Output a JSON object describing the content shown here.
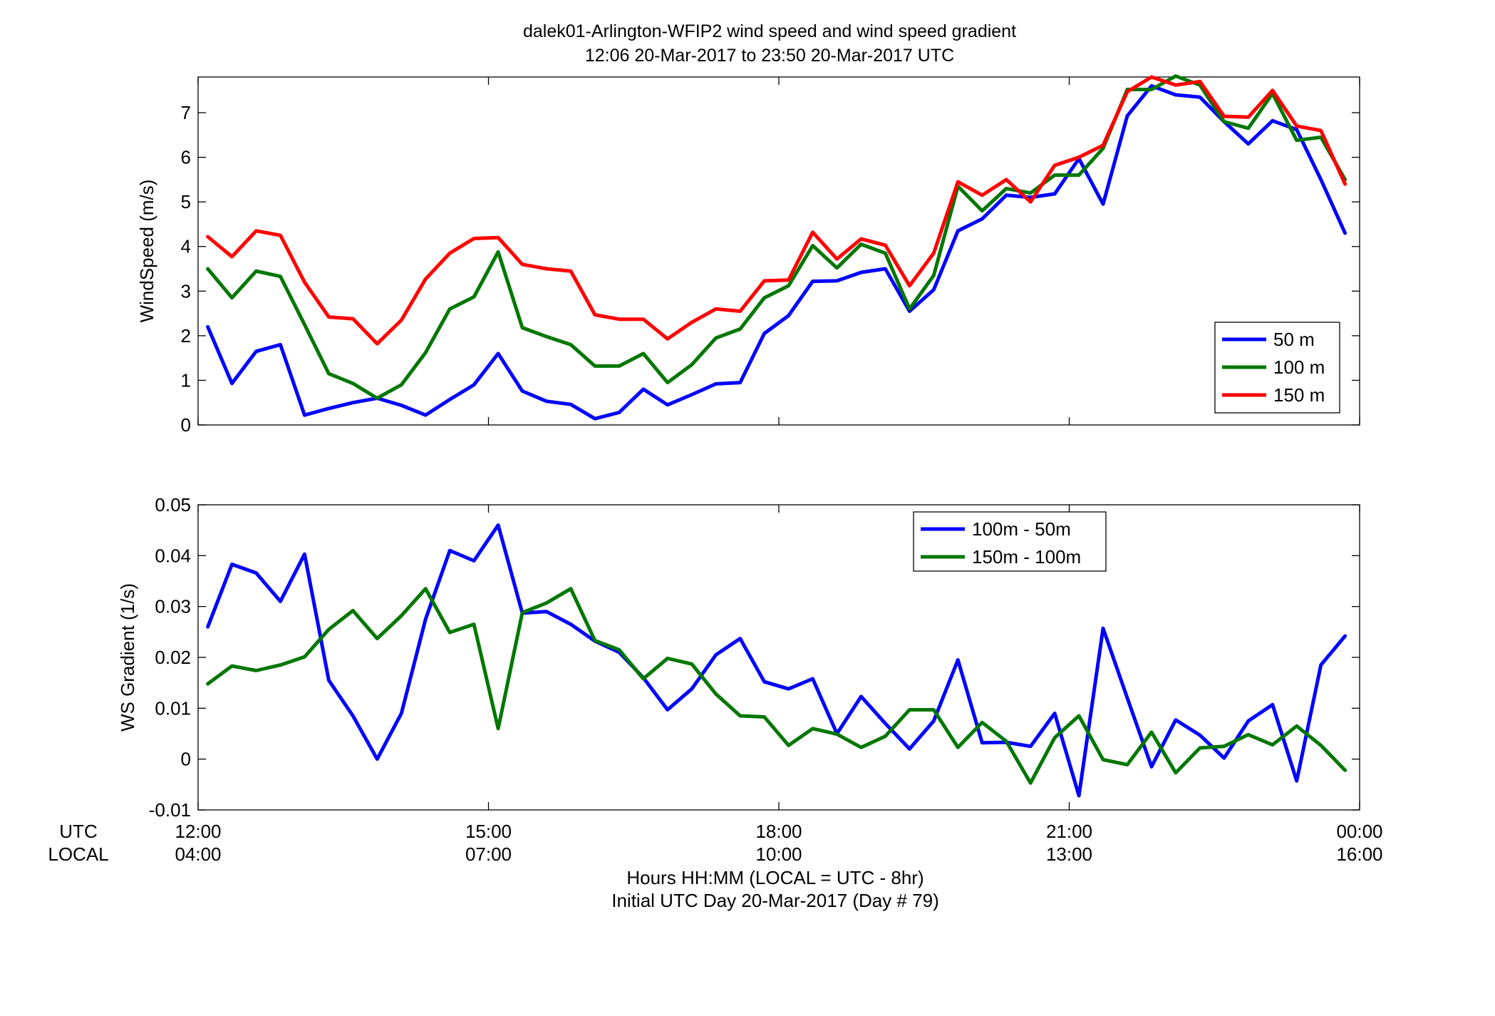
{
  "figure": {
    "title_line1": "dalek01-Arlington-WFIP2  wind speed and wind speed gradient",
    "title_line2": "12:06 20-Mar-2017 to 23:50 20-Mar-2017  UTC",
    "row_label_utc": "UTC",
    "row_label_local": "LOCAL",
    "xlabel_line1": "Hours HH:MM  (LOCAL = UTC - 8hr)",
    "xlabel_line2": "Initial UTC Day 20-Mar-2017 (Day # 79)",
    "utc_ticks": [
      "12:00",
      "15:00",
      "18:00",
      "21:00",
      "00:00"
    ],
    "local_ticks": [
      "04:00",
      "07:00",
      "10:00",
      "13:00",
      "16:00"
    ]
  },
  "chart_data": [
    {
      "type": "line",
      "ylabel": "WindSpeed (m/s)",
      "xlim": [
        0,
        12
      ],
      "x_unit": "hours after 12:00 UTC",
      "ylim": [
        0,
        7.8
      ],
      "yticks": [
        0,
        1,
        2,
        3,
        4,
        5,
        6,
        7
      ],
      "legend_position": "bottom-right",
      "x": [
        0.1,
        0.35,
        0.6,
        0.85,
        1.1,
        1.35,
        1.6,
        1.85,
        2.1,
        2.35,
        2.6,
        2.85,
        3.1,
        3.35,
        3.6,
        3.85,
        4.1,
        4.35,
        4.6,
        4.85,
        5.1,
        5.35,
        5.6,
        5.85,
        6.1,
        6.35,
        6.6,
        6.85,
        7.1,
        7.35,
        7.6,
        7.85,
        8.1,
        8.35,
        8.6,
        8.85,
        9.1,
        9.35,
        9.6,
        9.85,
        10.1,
        10.35,
        10.6,
        10.85,
        11.1,
        11.35,
        11.6,
        11.85
      ],
      "series": [
        {
          "name": "50 m",
          "color": "#0000ff",
          "values": [
            2.2,
            0.93,
            1.65,
            1.8,
            0.22,
            0.37,
            0.5,
            0.6,
            0.44,
            0.22,
            0.57,
            0.9,
            1.6,
            0.76,
            0.53,
            0.46,
            0.14,
            0.28,
            0.8,
            0.45,
            0.68,
            0.92,
            0.95,
            2.05,
            2.45,
            3.22,
            3.23,
            3.42,
            3.5,
            2.55,
            3.03,
            4.35,
            4.62,
            5.15,
            5.1,
            5.18,
            5.97,
            4.95,
            6.93,
            7.6,
            7.4,
            7.35,
            6.8,
            6.3,
            6.82,
            6.62,
            5.5,
            4.3
          ]
        },
        {
          "name": "100 m",
          "color": "#007700",
          "values": [
            3.5,
            2.85,
            3.45,
            3.33,
            2.25,
            1.15,
            0.93,
            0.6,
            0.9,
            1.62,
            2.6,
            2.87,
            3.88,
            2.18,
            1.98,
            1.8,
            1.32,
            1.32,
            1.6,
            0.95,
            1.35,
            1.95,
            2.15,
            2.85,
            3.12,
            4.02,
            3.52,
            4.05,
            3.85,
            2.6,
            3.35,
            5.35,
            4.8,
            5.3,
            5.2,
            5.6,
            5.6,
            6.2,
            7.52,
            7.52,
            7.82,
            7.62,
            6.8,
            6.65,
            7.43,
            6.38,
            6.45,
            5.5
          ]
        },
        {
          "name": "150 m",
          "color": "#ff0000",
          "values": [
            4.22,
            3.77,
            4.35,
            4.25,
            3.2,
            2.42,
            2.38,
            1.82,
            2.35,
            3.27,
            3.85,
            4.18,
            4.2,
            3.6,
            3.5,
            3.45,
            2.47,
            2.37,
            2.37,
            1.93,
            2.3,
            2.6,
            2.55,
            3.23,
            3.25,
            4.32,
            3.72,
            4.17,
            4.03,
            3.12,
            3.85,
            5.45,
            5.15,
            5.5,
            5.0,
            5.82,
            6.0,
            6.27,
            7.47,
            7.8,
            7.62,
            7.7,
            6.92,
            6.9,
            7.5,
            6.7,
            6.6,
            5.4
          ]
        }
      ]
    },
    {
      "type": "line",
      "ylabel": "WS Gradient (1/s)",
      "xlim": [
        0,
        12
      ],
      "x_unit": "hours after 12:00 UTC",
      "ylim": [
        -0.01,
        0.05
      ],
      "yticks": [
        -0.01,
        0,
        0.01,
        0.02,
        0.03,
        0.04,
        0.05
      ],
      "ytick_labels": [
        "-0.01",
        "0",
        "0.01",
        "0.02",
        "0.03",
        "0.04",
        "0.05"
      ],
      "legend_position": "top-center-right",
      "x": [
        0.1,
        0.35,
        0.6,
        0.85,
        1.1,
        1.35,
        1.6,
        1.85,
        2.1,
        2.35,
        2.6,
        2.85,
        3.1,
        3.35,
        3.6,
        3.85,
        4.1,
        4.35,
        4.6,
        4.85,
        5.1,
        5.35,
        5.6,
        5.85,
        6.1,
        6.35,
        6.6,
        6.85,
        7.1,
        7.35,
        7.6,
        7.85,
        8.1,
        8.35,
        8.6,
        8.85,
        9.1,
        9.35,
        9.6,
        9.85,
        10.1,
        10.35,
        10.6,
        10.85,
        11.1,
        11.35,
        11.6,
        11.85
      ],
      "series": [
        {
          "name": "100m - 50m",
          "color": "#0000ff",
          "values": [
            0.026,
            0.0383,
            0.0366,
            0.031,
            0.0403,
            0.0155,
            0.0085,
            0.0,
            0.009,
            0.0275,
            0.041,
            0.039,
            0.046,
            0.0287,
            0.029,
            0.0265,
            0.0232,
            0.021,
            0.016,
            0.0097,
            0.0138,
            0.0205,
            0.0237,
            0.0152,
            0.0138,
            0.0158,
            0.005,
            0.0123,
            0.007,
            0.002,
            0.0075,
            0.0195,
            0.0032,
            0.0033,
            0.0025,
            0.009,
            -0.0072,
            0.0257,
            0.012,
            -0.0015,
            0.0077,
            0.0047,
            0.0002,
            0.0075,
            0.0107,
            -0.0043,
            0.0185,
            0.0242
          ]
        },
        {
          "name": "150m - 100m",
          "color": "#007700",
          "values": [
            0.0148,
            0.0183,
            0.0174,
            0.0185,
            0.0201,
            0.0255,
            0.0292,
            0.0237,
            0.0282,
            0.0335,
            0.0249,
            0.0265,
            0.006,
            0.0288,
            0.0307,
            0.0335,
            0.0233,
            0.0215,
            0.0158,
            0.0198,
            0.0187,
            0.0128,
            0.0085,
            0.0083,
            0.0027,
            0.006,
            0.0049,
            0.0023,
            0.0045,
            0.0097,
            0.0097,
            0.0023,
            0.0072,
            0.0035,
            -0.0047,
            0.0042,
            0.0085,
            -0.0001,
            -0.0011,
            0.0053,
            -0.0027,
            0.0022,
            0.0025,
            0.0048,
            0.0028,
            0.0065,
            0.0027,
            -0.0022
          ]
        }
      ]
    }
  ]
}
